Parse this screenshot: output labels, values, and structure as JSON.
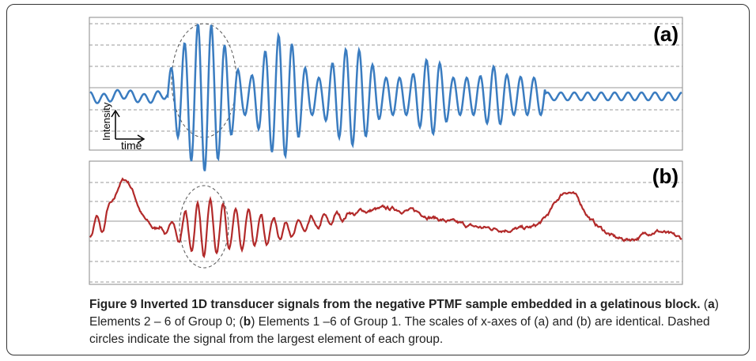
{
  "figure": {
    "panels": [
      {
        "label": "(a)"
      },
      {
        "label": "(b)"
      }
    ],
    "axis_labels": {
      "y": "Intensity",
      "x": "time"
    }
  },
  "caption": {
    "title": "Figure 9 Inverted 1D transducer signals from the negative PTMF sample embedded in a gelatinous block.",
    "parts": [
      "(",
      "a",
      ") Elements 2 – 6 of Group 0; (",
      "b",
      ") Elements 1 –6 of Group 1. The scales of x-axes of (a) and (b) are identical. Dashed circles indicate the signal from the largest element of each group."
    ]
  }
}
